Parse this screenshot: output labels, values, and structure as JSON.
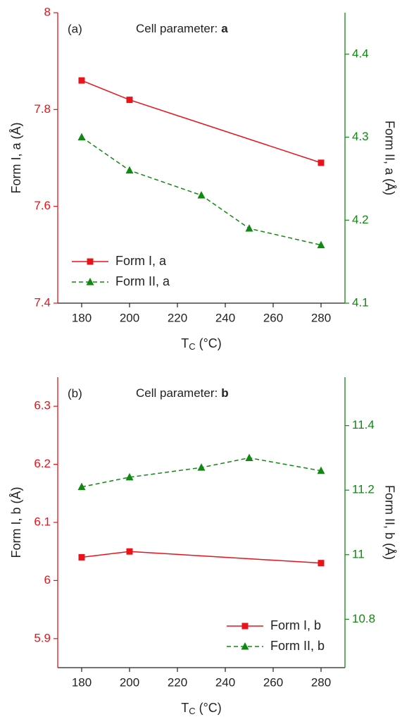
{
  "chart_data": [
    {
      "type": "line",
      "panel_label": "(a)",
      "annotation": [
        "Cell parameter:",
        "a"
      ],
      "xlabel": [
        "T",
        "C",
        "(°C)"
      ],
      "ylabel": "Form I, a (Å)",
      "y2label": "Form II, a (Å)",
      "xlim": [
        170,
        290
      ],
      "xticks": [
        180,
        200,
        220,
        240,
        260,
        280
      ],
      "ylim": [
        7.4,
        8.0
      ],
      "yticks": [
        7.4,
        7.6,
        7.8,
        8.0
      ],
      "y2lim": [
        4.1,
        4.45
      ],
      "y2ticks": [
        4.1,
        4.2,
        4.3,
        4.4
      ],
      "ycolor": "#e8131b",
      "y2color": "#118811",
      "legend": "lower left",
      "series": [
        {
          "name": "Form I, a",
          "color": "#e8131b",
          "marker": "square",
          "linestyle": "solid",
          "x": [
            180,
            200,
            280
          ],
          "values": [
            7.86,
            7.82,
            7.69
          ]
        },
        {
          "name": "Form II, a",
          "color": "#118811",
          "marker": "triangle",
          "linestyle": "dashed",
          "axis": "y2",
          "x": [
            180,
            200,
            230,
            250,
            280
          ],
          "values": [
            4.3,
            4.26,
            4.23,
            4.19,
            4.17
          ]
        }
      ]
    },
    {
      "type": "line",
      "panel_label": "(b)",
      "annotation": [
        "Cell parameter:",
        "b"
      ],
      "xlabel": [
        "T",
        "C",
        "(°C)"
      ],
      "ylabel": "Form I, b (Å)",
      "y2label": "Form II, b (Å)",
      "xlim": [
        170,
        290
      ],
      "xticks": [
        180,
        200,
        220,
        240,
        260,
        280
      ],
      "ylim": [
        5.85,
        6.35
      ],
      "yticks": [
        5.9,
        6.0,
        6.1,
        6.2,
        6.3
      ],
      "y2lim": [
        10.65,
        11.55
      ],
      "y2ticks": [
        10.8,
        11.0,
        11.2,
        11.4
      ],
      "ycolor": "#e8131b",
      "y2color": "#118811",
      "legend": "lower right",
      "series": [
        {
          "name": "Form I, b",
          "color": "#e8131b",
          "marker": "square",
          "linestyle": "solid",
          "x": [
            180,
            200,
            280
          ],
          "values": [
            6.04,
            6.05,
            6.03
          ]
        },
        {
          "name": "Form II, b",
          "color": "#118811",
          "marker": "triangle",
          "linestyle": "dashed",
          "axis": "y2",
          "x": [
            180,
            200,
            230,
            250,
            280
          ],
          "values": [
            11.21,
            11.24,
            11.27,
            11.3,
            11.26
          ]
        }
      ]
    }
  ]
}
